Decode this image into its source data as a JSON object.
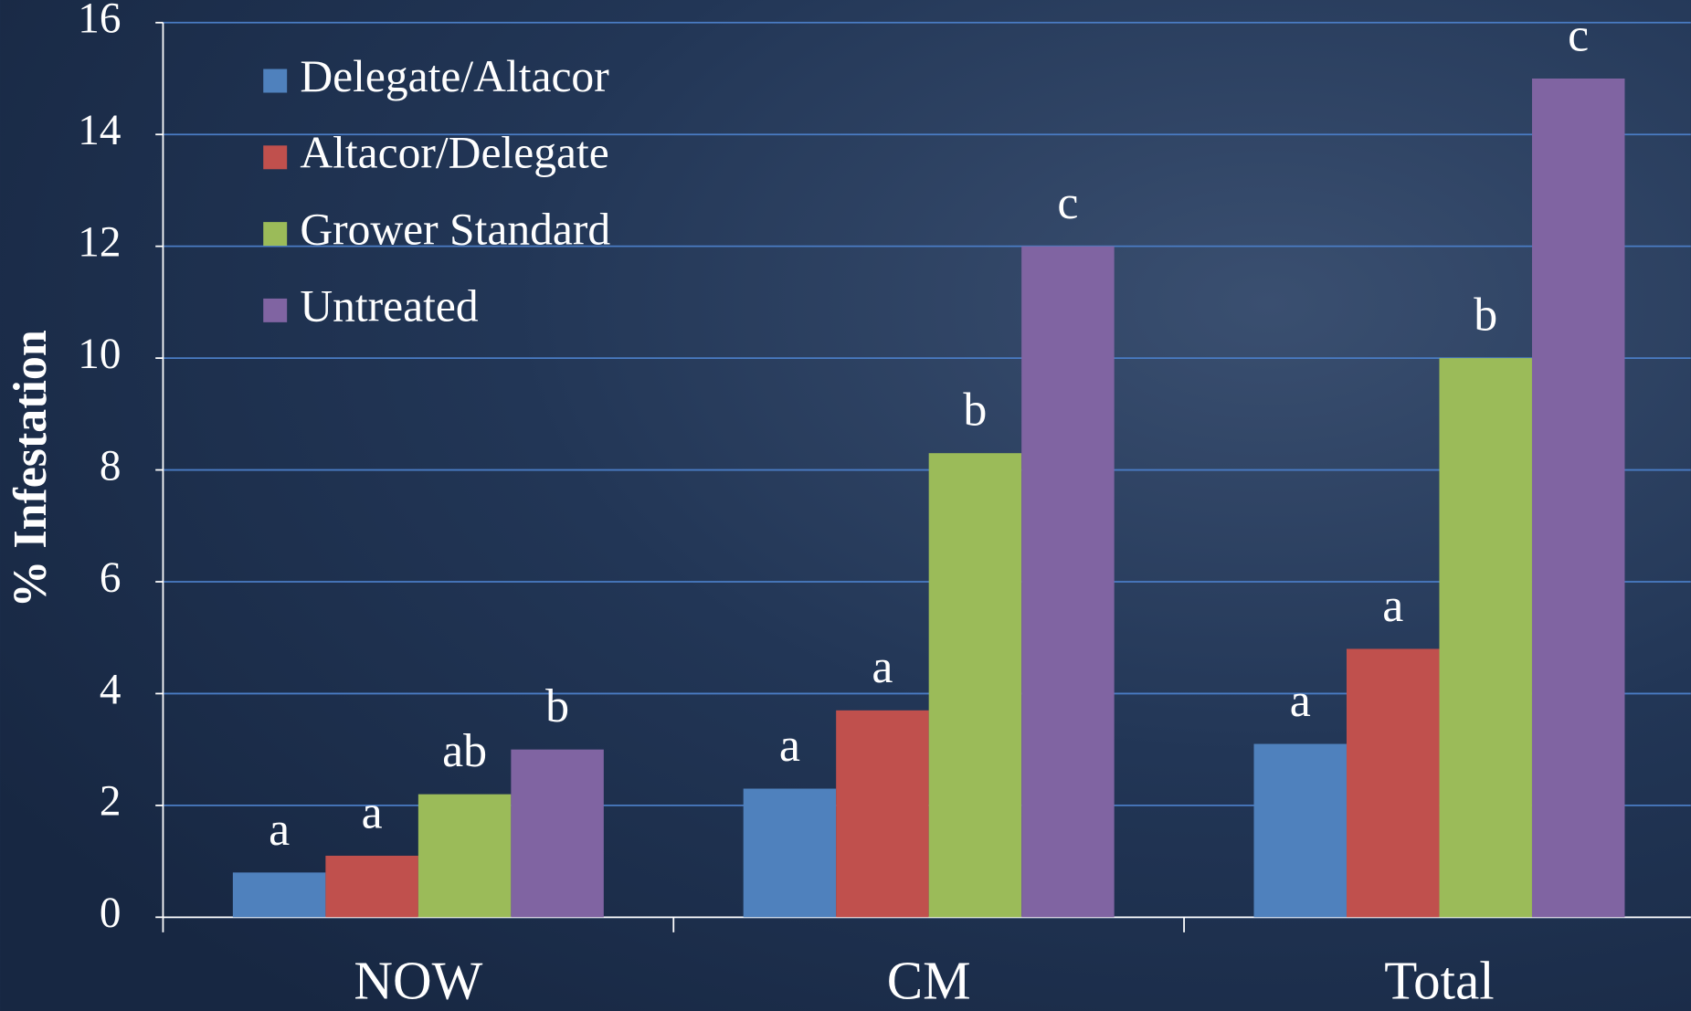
{
  "chart_data": {
    "type": "bar",
    "y_label": "% Infestation",
    "categories": [
      "NOW",
      "CM",
      "Total"
    ],
    "series": [
      {
        "name": "Delegate/Altacor",
        "color": "#4f81bd",
        "values": [
          0.8,
          2.3,
          3.1
        ],
        "significance_labels": [
          "a",
          "a",
          "a"
        ]
      },
      {
        "name": "Altacor/Delegate",
        "color": "#c0504d",
        "values": [
          1.1,
          3.7,
          4.8
        ],
        "significance_labels": [
          "a",
          "a",
          "a"
        ]
      },
      {
        "name": "Grower Standard",
        "color": "#9bbb59",
        "values": [
          2.2,
          8.3,
          10
        ],
        "significance_labels": [
          "ab",
          "b",
          "b"
        ]
      },
      {
        "name": "Untreated",
        "color": "#8064a2",
        "values": [
          3,
          12,
          15
        ],
        "significance_labels": [
          "b",
          "c",
          "c"
        ]
      }
    ],
    "ylim": [
      0,
      16
    ],
    "yticks": [
      0,
      2,
      4,
      6,
      8,
      10,
      12,
      14,
      16
    ],
    "grid": true,
    "legend": "top-left"
  }
}
